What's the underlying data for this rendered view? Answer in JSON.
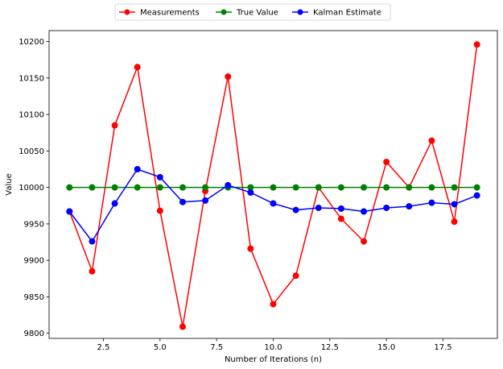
{
  "chart_data": {
    "type": "line",
    "title": "",
    "xlabel": "Number of Iterations (n)",
    "ylabel": "Value",
    "xlim": [
      0.1,
      19.9
    ],
    "ylim": [
      9793,
      10215
    ],
    "x_ticks": [
      2.5,
      5.0,
      7.5,
      10.0,
      12.5,
      15.0,
      17.5
    ],
    "x_tick_labels": [
      "2.5",
      "5.0",
      "7.5",
      "10.0",
      "12.5",
      "15.0",
      "17.5"
    ],
    "y_ticks": [
      9800,
      9850,
      9900,
      9950,
      10000,
      10050,
      10100,
      10150,
      10200
    ],
    "y_tick_labels": [
      "9800",
      "9850",
      "9900",
      "9950",
      "10000",
      "10050",
      "10100",
      "10150",
      "10200"
    ],
    "grid": false,
    "legend_position": "top-center",
    "x": [
      1,
      2,
      3,
      4,
      5,
      6,
      7,
      8,
      9,
      10,
      11,
      12,
      13,
      14,
      15,
      16,
      17,
      18,
      19
    ],
    "series": [
      {
        "name": "Measurements",
        "color": "#ff0000",
        "values": [
          9967,
          9885,
          10085,
          10165,
          9968,
          9809,
          9995,
          10152,
          9916,
          9840,
          9879,
          10000,
          9957,
          9926,
          10035,
          10000,
          10064,
          9953,
          10196
        ]
      },
      {
        "name": "True Value",
        "color": "#008000",
        "values": [
          10000,
          10000,
          10000,
          10000,
          10000,
          10000,
          10000,
          10000,
          10000,
          10000,
          10000,
          10000,
          10000,
          10000,
          10000,
          10000,
          10000,
          10000,
          10000
        ]
      },
      {
        "name": "Kalman Estimate",
        "color": "#0000ff",
        "values": [
          9967,
          9926,
          9978,
          10025,
          10014,
          9980,
          9982,
          10003,
          9993,
          9978,
          9969,
          9972,
          9971,
          9967,
          9972,
          9974,
          9979,
          9977,
          9989
        ]
      }
    ]
  }
}
